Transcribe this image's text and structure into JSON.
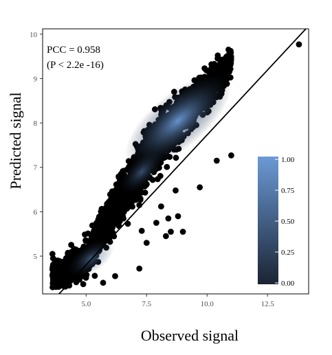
{
  "chart_data": {
    "type": "scatter",
    "xlabel": "Observed signal",
    "ylabel": "Predicted signal",
    "xlim": [
      3.2,
      14.2
    ],
    "ylim": [
      4.15,
      10.12
    ],
    "x_ticks": [
      "5.0",
      "7.5",
      "10.0",
      "12.5"
    ],
    "x_tick_values": [
      5.0,
      7.5,
      10.0,
      12.5
    ],
    "y_ticks": [
      "5",
      "6",
      "7",
      "8",
      "9",
      "10"
    ],
    "y_tick_values": [
      5,
      6,
      7,
      8,
      9,
      10
    ],
    "annotation": [
      "PCC = 0.958",
      "(P < 2.2e -16)"
    ],
    "fit_line": {
      "slope": 0.585,
      "intercept": 1.88
    },
    "point_cloud": {
      "description_free": true,
      "density_ridge": [
        [
          4.0,
          4.6
        ],
        [
          5.0,
          4.9
        ],
        [
          6.0,
          5.9
        ],
        [
          7.5,
          7.2
        ],
        [
          8.8,
          8.1
        ],
        [
          10.3,
          8.9
        ],
        [
          11.0,
          9.4
        ]
      ],
      "outliers": [
        [
          13.8,
          9.77
        ],
        [
          11.0,
          7.27
        ],
        [
          10.4,
          7.15
        ],
        [
          9.7,
          6.55
        ],
        [
          8.7,
          6.48
        ],
        [
          8.1,
          6.12
        ],
        [
          7.2,
          6.15
        ],
        [
          7.3,
          5.57
        ],
        [
          7.9,
          5.75
        ],
        [
          8.4,
          5.85
        ],
        [
          8.5,
          5.55
        ],
        [
          8.3,
          5.45
        ],
        [
          9.0,
          5.55
        ],
        [
          8.8,
          5.9
        ],
        [
          7.5,
          5.3
        ],
        [
          7.2,
          4.72
        ],
        [
          6.2,
          4.55
        ],
        [
          5.7,
          4.4
        ]
      ]
    },
    "legend": {
      "type": "colorbar",
      "ticks": [
        "1.00",
        "0.75",
        "0.50",
        "0.25",
        "0.00"
      ],
      "tick_values": [
        1.0,
        0.75,
        0.5,
        0.25,
        0.0
      ],
      "color_low": "#1b2433",
      "color_high": "#6b9ad6",
      "placement": "inside-bottom-right"
    },
    "colors": {
      "points": "#000000",
      "fit_line": "#000000",
      "density_low": "#1b2433",
      "density_high": "#6b9ad6"
    }
  }
}
